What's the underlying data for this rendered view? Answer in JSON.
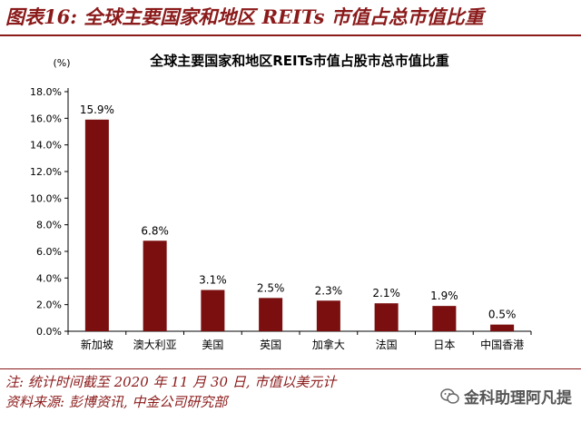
{
  "figure_title": "图表16: 全球主要国家和地区 REITs 市值占总市值比重",
  "footnote": "注: 统计时间截至 2020 年 11 月 30 日, 市值以美元计",
  "source": "资料来源: 彭博资讯, 中金公司研究部",
  "watermark": "金科助理阿凡提",
  "colors": {
    "accent": "#8b1a1a",
    "bar": "#7b0f0f"
  },
  "chart_data": {
    "type": "bar",
    "title": "全球主要国家和地区REITs市值占股市总市值比重",
    "unit_label": "(%)",
    "categories": [
      "新加坡",
      "澳大利亚",
      "美国",
      "英国",
      "加拿大",
      "法国",
      "日本",
      "中国香港"
    ],
    "values": [
      15.9,
      6.8,
      3.1,
      2.5,
      2.3,
      2.1,
      1.9,
      0.5
    ],
    "data_labels": [
      "15.9%",
      "6.8%",
      "3.1%",
      "2.5%",
      "2.3%",
      "2.1%",
      "1.9%",
      "0.5%"
    ],
    "y_ticks": [
      "0.0%",
      "2.0%",
      "4.0%",
      "6.0%",
      "8.0%",
      "10.0%",
      "12.0%",
      "14.0%",
      "16.0%",
      "18.0%"
    ],
    "ylim": [
      0,
      18
    ],
    "grid": false,
    "legend": "none"
  }
}
